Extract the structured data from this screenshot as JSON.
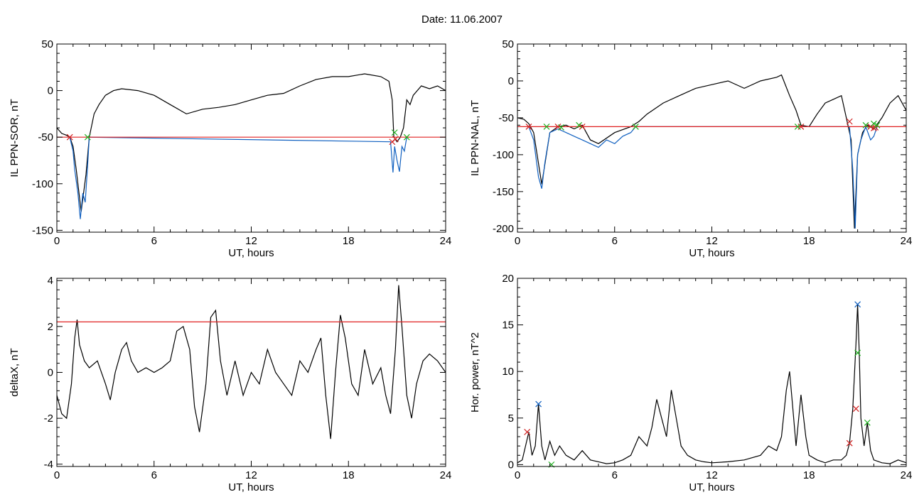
{
  "figure": {
    "title": "Date:  11.06.2007"
  },
  "chart_data": [
    {
      "id": "sor",
      "type": "line",
      "xlabel": "UT, hours",
      "ylabel": "IL PPN-SOR, nT",
      "xlim": [
        0,
        24
      ],
      "ylim": [
        -152,
        50
      ],
      "xticks": [
        0,
        6,
        12,
        18,
        24
      ],
      "yticks": [
        -150,
        -100,
        -50,
        0,
        50
      ],
      "threshold": -50,
      "series": [
        {
          "color": "#000000",
          "x": [
            0,
            0.3,
            0.6,
            0.8,
            1.0,
            1.2,
            1.5,
            1.8,
            2.0,
            2.3,
            2.6,
            3.0,
            3.5,
            4,
            5,
            6,
            7,
            8,
            9,
            10,
            11,
            12,
            13,
            14,
            15,
            16,
            17,
            18,
            19,
            20,
            20.5,
            20.7,
            20.8,
            21.0,
            21.2,
            21.4,
            21.6,
            21.8,
            22,
            22.5,
            23,
            23.5,
            24
          ],
          "y": [
            -40,
            -46,
            -48,
            -50,
            -60,
            -85,
            -130,
            -90,
            -50,
            -25,
            -15,
            -5,
            0,
            2,
            0,
            -5,
            -15,
            -25,
            -20,
            -18,
            -15,
            -10,
            -5,
            -3,
            5,
            12,
            15,
            15,
            18,
            15,
            10,
            -10,
            -50,
            -55,
            -50,
            -40,
            -10,
            -15,
            -5,
            5,
            2,
            5,
            0
          ]
        },
        {
          "color": "#1060c0",
          "x": [
            0.8,
            1.0,
            1.1,
            1.3,
            1.45,
            1.6,
            1.75,
            1.9,
            2.0,
            20.6,
            20.75,
            20.85,
            21.0,
            21.15,
            21.3,
            21.45,
            21.6
          ],
          "y": [
            -50,
            -65,
            -85,
            -110,
            -138,
            -110,
            -120,
            -80,
            -50,
            -55,
            -88,
            -60,
            -75,
            -87,
            -60,
            -65,
            -50
          ]
        }
      ],
      "markers": [
        {
          "color": "#d02020",
          "x": [
            0.8,
            20.7,
            20.9
          ],
          "y": [
            -50,
            -55,
            -52
          ]
        },
        {
          "color": "#20b020",
          "x": [
            1.9,
            20.85,
            21.6
          ],
          "y": [
            -50,
            -45,
            -50
          ]
        }
      ]
    },
    {
      "id": "nal",
      "type": "line",
      "xlabel": "UT, hours",
      "ylabel": "IL PPN-NAL, nT",
      "xlim": [
        0,
        24
      ],
      "ylim": [
        -205,
        50
      ],
      "xticks": [
        0,
        6,
        12,
        18,
        24
      ],
      "yticks": [
        -200,
        -150,
        -100,
        -50,
        0,
        50
      ],
      "threshold": -62,
      "series": [
        {
          "color": "#000000",
          "x": [
            0,
            0.4,
            0.7,
            1.0,
            1.5,
            2,
            2.5,
            3,
            3.5,
            4,
            4.5,
            5,
            6,
            7,
            7.5,
            8,
            9,
            10,
            11,
            12,
            13,
            14,
            15,
            16,
            16.3,
            16.8,
            17.2,
            17.5,
            18,
            18.5,
            19,
            19.5,
            20,
            20.3,
            20.6,
            20.8,
            21,
            21.3,
            21.6,
            22,
            22.5,
            23,
            23.5,
            24
          ],
          "y": [
            -50,
            -52,
            -58,
            -70,
            -140,
            -70,
            -62,
            -60,
            -65,
            -60,
            -80,
            -85,
            -70,
            -62,
            -55,
            -45,
            -30,
            -20,
            -10,
            -5,
            0,
            -10,
            0,
            5,
            8,
            -20,
            -40,
            -60,
            -62,
            -45,
            -30,
            -25,
            -20,
            -50,
            -80,
            -200,
            -100,
            -70,
            -60,
            -65,
            -50,
            -30,
            -20,
            -40
          ]
        },
        {
          "color": "#1060c0",
          "x": [
            0.7,
            1.0,
            1.3,
            1.5,
            1.7,
            2,
            2.5,
            3,
            3.5,
            4,
            4.5,
            5,
            5.5,
            6,
            6.5,
            7,
            7.3,
            20.5,
            20.7,
            20.85,
            21.0,
            21.2,
            21.5,
            21.8,
            22.0,
            22.2
          ],
          "y": [
            -62,
            -80,
            -130,
            -146,
            -110,
            -70,
            -65,
            -70,
            -75,
            -80,
            -85,
            -90,
            -80,
            -85,
            -75,
            -70,
            -62,
            -62,
            -120,
            -200,
            -100,
            -80,
            -62,
            -80,
            -75,
            -62
          ]
        }
      ],
      "markers": [
        {
          "color": "#d02020",
          "x": [
            0.7,
            2.5,
            4,
            17.5,
            20.5,
            21.8,
            22,
            22.1
          ],
          "y": [
            -62,
            -62,
            -62,
            -62,
            -55,
            -62,
            -64,
            -63
          ]
        },
        {
          "color": "#20b020",
          "x": [
            1.8,
            2.7,
            3.8,
            7.3,
            17.3,
            21.5,
            22.0,
            22.2
          ],
          "y": [
            -62,
            -63,
            -60,
            -62,
            -62,
            -60,
            -58,
            -60
          ]
        }
      ]
    },
    {
      "id": "deltax",
      "type": "line",
      "xlabel": "UT, hours",
      "ylabel": "deltaX, nT",
      "xlim": [
        0,
        24
      ],
      "ylim": [
        -4.1,
        4.1
      ],
      "xticks": [
        0,
        6,
        12,
        18,
        24
      ],
      "yticks": [
        -4,
        -2,
        0,
        2,
        4
      ],
      "threshold": 2.2,
      "series": [
        {
          "color": "#000000",
          "x": [
            0,
            0.3,
            0.6,
            0.9,
            1.1,
            1.25,
            1.4,
            1.7,
            2,
            2.5,
            3,
            3.3,
            3.6,
            4,
            4.3,
            4.6,
            5,
            5.5,
            6,
            6.5,
            7,
            7.4,
            7.8,
            8.2,
            8.5,
            8.8,
            9.2,
            9.5,
            9.8,
            10.1,
            10.5,
            11,
            11.5,
            12,
            12.5,
            13,
            13.5,
            14,
            14.5,
            15,
            15.5,
            16,
            16.3,
            16.6,
            16.9,
            17.2,
            17.5,
            17.8,
            18.2,
            18.6,
            19,
            19.5,
            20,
            20.3,
            20.6,
            20.9,
            21.1,
            21.3,
            21.6,
            21.9,
            22.2,
            22.6,
            23,
            23.5,
            24
          ],
          "y": [
            -1,
            -1.8,
            -2,
            -0.5,
            1.5,
            2.3,
            1.2,
            0.5,
            0.2,
            0.5,
            -0.5,
            -1.2,
            0,
            1,
            1.3,
            0.5,
            0,
            0.2,
            0,
            0.2,
            0.5,
            1.8,
            2,
            1,
            -1.5,
            -2.6,
            -0.5,
            2.4,
            2.7,
            0.5,
            -1,
            0.5,
            -1,
            0,
            -0.5,
            1,
            0,
            -0.5,
            -1,
            0.5,
            0,
            1,
            1.5,
            -1,
            -2.9,
            0,
            2.5,
            1.5,
            -0.5,
            -1,
            1,
            -0.5,
            0.2,
            -1,
            -1.8,
            1,
            3.8,
            2,
            -1,
            -2,
            -0.5,
            0.5,
            0.8,
            0.5,
            0
          ]
        }
      ],
      "markers": []
    },
    {
      "id": "power",
      "type": "line",
      "xlabel": "UT, hours",
      "ylabel": "Hor. power, nT^2",
      "xlim": [
        0,
        24
      ],
      "ylim": [
        -0.2,
        20
      ],
      "xticks": [
        0,
        6,
        12,
        18,
        24
      ],
      "yticks": [
        0,
        5,
        10,
        15,
        20
      ],
      "threshold": null,
      "series": [
        {
          "color": "#000000",
          "x": [
            0,
            0.3,
            0.5,
            0.7,
            0.9,
            1.1,
            1.3,
            1.5,
            1.7,
            2,
            2.3,
            2.6,
            3,
            3.5,
            4,
            4.5,
            5,
            5.5,
            6,
            6.5,
            7,
            7.5,
            8,
            8.3,
            8.6,
            8.9,
            9.2,
            9.5,
            9.8,
            10.1,
            10.5,
            11,
            11.5,
            12,
            13,
            14,
            15,
            15.5,
            16,
            16.3,
            16.6,
            16.8,
            17.0,
            17.2,
            17.5,
            17.8,
            18,
            18.5,
            19,
            19.5,
            20,
            20.3,
            20.5,
            20.7,
            20.9,
            21.0,
            21.1,
            21.2,
            21.4,
            21.6,
            21.8,
            22,
            22.5,
            23,
            23.5,
            24
          ],
          "y": [
            0.2,
            0.5,
            2,
            3.5,
            1,
            2,
            6.5,
            2,
            0.5,
            2.5,
            1,
            2,
            1,
            0.5,
            1.5,
            0.5,
            0.3,
            0.1,
            0.2,
            0.5,
            1,
            3,
            2,
            4,
            7,
            5,
            3,
            8,
            5,
            2,
            1,
            0.5,
            0.3,
            0.2,
            0.3,
            0.5,
            1,
            2,
            1.5,
            3,
            8,
            10,
            6,
            2,
            7.5,
            3,
            1,
            0.5,
            0.2,
            0.5,
            0.5,
            1,
            2.3,
            6,
            13,
            17.2,
            12,
            5,
            2,
            4.5,
            1.5,
            0.5,
            0.2,
            0.1,
            0.5,
            0.2
          ]
        }
      ],
      "markers": [
        {
          "color": "#1060c0",
          "x": [
            1.3,
            21.0
          ],
          "y": [
            6.5,
            17.2
          ]
        },
        {
          "color": "#d02020",
          "x": [
            0.6,
            20.5,
            20.9
          ],
          "y": [
            3.5,
            2.3,
            6
          ]
        },
        {
          "color": "#20b020",
          "x": [
            2.1,
            21.0,
            21.6
          ],
          "y": [
            0,
            12,
            4.5
          ]
        }
      ]
    }
  ]
}
